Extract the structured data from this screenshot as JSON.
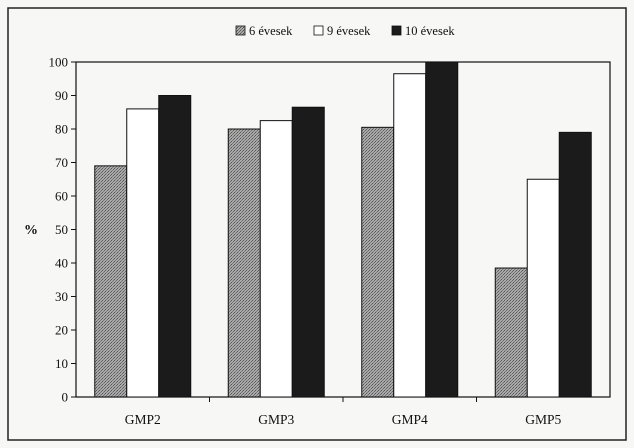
{
  "chart_data": {
    "type": "bar",
    "title": "",
    "xlabel": "",
    "ylabel": "%",
    "ylim": [
      0,
      100
    ],
    "yticks": [
      0,
      10,
      20,
      30,
      40,
      50,
      60,
      70,
      80,
      90,
      100
    ],
    "grid": false,
    "legend_position": "top",
    "categories": [
      "GMP2",
      "GMP3",
      "GMP4",
      "GMP5"
    ],
    "series": [
      {
        "name": "6 évesek",
        "values": [
          69,
          80,
          80.5,
          38.5
        ],
        "color": "#8c8c8c"
      },
      {
        "name": "9 évesek",
        "values": [
          86,
          82.5,
          96.5,
          65
        ],
        "color": "#ffffff"
      },
      {
        "name": "10 évesek",
        "values": [
          90,
          86.5,
          100,
          79
        ],
        "color": "#1b1b1b"
      }
    ]
  }
}
